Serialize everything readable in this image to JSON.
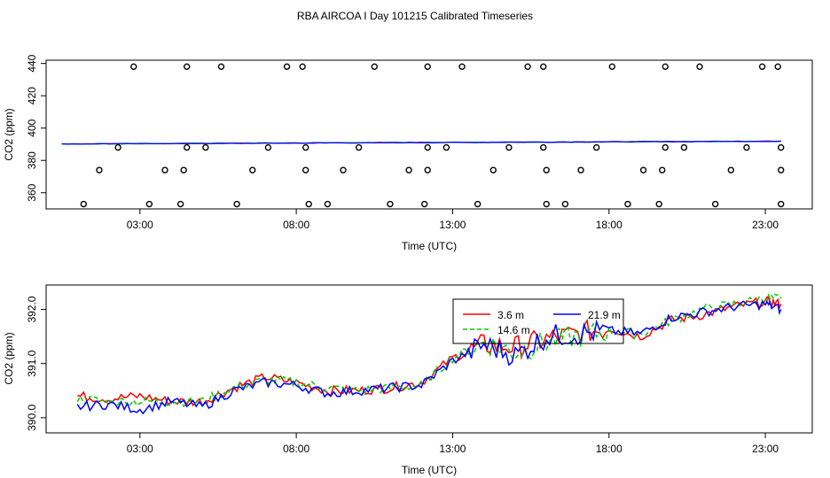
{
  "title": "RBA AIRCOA I  Day 101215  Calibrated Timeseries",
  "colors": {
    "line_3_6": "#ff0000",
    "line_14_6": "#00cc00",
    "line_21_9": "#0000ff",
    "points": "#000000"
  },
  "chart_data": [
    {
      "type": "scatter",
      "xlabel": "Time (UTC)",
      "ylabel": "CO2 (ppm)",
      "xlim": [
        0.0,
        24.5
      ],
      "ylim": [
        350,
        442
      ],
      "x_ticks": [
        3,
        8,
        13,
        18,
        23
      ],
      "x_tick_labels": [
        "03:00",
        "08:00",
        "13:00",
        "18:00",
        "23:00"
      ],
      "y_ticks": [
        360,
        380,
        400,
        420,
        440
      ],
      "y_tick_labels": [
        "360",
        "380",
        "400",
        "420",
        "440"
      ],
      "points": [
        {
          "x": 1.2,
          "y": 353
        },
        {
          "x": 1.7,
          "y": 374
        },
        {
          "x": 2.3,
          "y": 388
        },
        {
          "x": 2.8,
          "y": 438
        },
        {
          "x": 3.3,
          "y": 353
        },
        {
          "x": 3.8,
          "y": 374
        },
        {
          "x": 4.3,
          "y": 353
        },
        {
          "x": 4.4,
          "y": 374
        },
        {
          "x": 4.5,
          "y": 388
        },
        {
          "x": 4.5,
          "y": 438
        },
        {
          "x": 5.1,
          "y": 388
        },
        {
          "x": 5.6,
          "y": 438
        },
        {
          "x": 6.1,
          "y": 353
        },
        {
          "x": 6.6,
          "y": 374
        },
        {
          "x": 7.1,
          "y": 388
        },
        {
          "x": 7.7,
          "y": 438
        },
        {
          "x": 8.2,
          "y": 438
        },
        {
          "x": 8.3,
          "y": 388
        },
        {
          "x": 8.3,
          "y": 374
        },
        {
          "x": 8.4,
          "y": 353
        },
        {
          "x": 9.0,
          "y": 353
        },
        {
          "x": 9.5,
          "y": 374
        },
        {
          "x": 10.0,
          "y": 388
        },
        {
          "x": 10.5,
          "y": 438
        },
        {
          "x": 11.0,
          "y": 353
        },
        {
          "x": 11.6,
          "y": 374
        },
        {
          "x": 12.1,
          "y": 353
        },
        {
          "x": 12.2,
          "y": 374
        },
        {
          "x": 12.2,
          "y": 388
        },
        {
          "x": 12.2,
          "y": 438
        },
        {
          "x": 12.8,
          "y": 388
        },
        {
          "x": 13.3,
          "y": 438
        },
        {
          "x": 13.8,
          "y": 353
        },
        {
          "x": 14.3,
          "y": 374
        },
        {
          "x": 14.8,
          "y": 388
        },
        {
          "x": 15.4,
          "y": 438
        },
        {
          "x": 15.9,
          "y": 438
        },
        {
          "x": 15.9,
          "y": 388
        },
        {
          "x": 16.0,
          "y": 374
        },
        {
          "x": 16.0,
          "y": 353
        },
        {
          "x": 16.6,
          "y": 353
        },
        {
          "x": 17.1,
          "y": 374
        },
        {
          "x": 17.6,
          "y": 388
        },
        {
          "x": 18.1,
          "y": 438
        },
        {
          "x": 18.6,
          "y": 353
        },
        {
          "x": 19.1,
          "y": 374
        },
        {
          "x": 19.6,
          "y": 353
        },
        {
          "x": 19.7,
          "y": 374
        },
        {
          "x": 19.8,
          "y": 388
        },
        {
          "x": 19.8,
          "y": 438
        },
        {
          "x": 20.4,
          "y": 388
        },
        {
          "x": 20.9,
          "y": 438
        },
        {
          "x": 21.4,
          "y": 353
        },
        {
          "x": 21.9,
          "y": 374
        },
        {
          "x": 22.4,
          "y": 388
        },
        {
          "x": 22.9,
          "y": 438
        },
        {
          "x": 23.4,
          "y": 438
        },
        {
          "x": 23.5,
          "y": 388
        },
        {
          "x": 23.5,
          "y": 374
        },
        {
          "x": 23.5,
          "y": 353
        }
      ],
      "series": [
        {
          "values": [
            [
              0.5,
              390.2
            ],
            [
              23.5,
              391.9
            ]
          ]
        }
      ]
    },
    {
      "type": "line",
      "xlabel": "Time (UTC)",
      "ylabel": "CO2 (ppm)",
      "xlim": [
        0.0,
        24.5
      ],
      "ylim": [
        389.72,
        392.45
      ],
      "x_ticks": [
        3,
        8,
        13,
        18,
        23
      ],
      "x_tick_labels": [
        "03:00",
        "08:00",
        "13:00",
        "18:00",
        "23:00"
      ],
      "y_ticks": [
        390.0,
        391.0,
        392.0
      ],
      "y_tick_labels": [
        "390.0",
        "391.0",
        "392.0"
      ],
      "legend": {
        "position": "top-center",
        "entries": [
          "3.6 m",
          "14.6 m",
          "21.9 m"
        ]
      },
      "series": [
        {
          "name": "3.6 m",
          "x": [
            1.0,
            2.0,
            3.0,
            4.0,
            5.0,
            6.0,
            7.0,
            8.0,
            9.0,
            10.0,
            11.0,
            12.0,
            13.0,
            14.0,
            15.0,
            16.0,
            17.0,
            18.0,
            19.0,
            20.0,
            21.0,
            22.0,
            23.0,
            23.5
          ],
          "y": [
            390.4,
            390.35,
            390.4,
            390.3,
            390.3,
            390.55,
            390.75,
            390.65,
            390.5,
            390.5,
            390.55,
            390.65,
            391.1,
            391.35,
            391.3,
            391.45,
            391.55,
            391.65,
            391.5,
            391.8,
            391.9,
            392.05,
            392.15,
            392.1
          ]
        },
        {
          "name": "14.6 m",
          "x": [
            1.0,
            2.0,
            3.0,
            4.0,
            5.0,
            6.0,
            7.0,
            8.0,
            9.0,
            10.0,
            11.0,
            12.0,
            13.0,
            14.0,
            15.0,
            16.0,
            17.0,
            18.0,
            19.0,
            20.0,
            21.0,
            22.0,
            23.0,
            23.5
          ],
          "y": [
            390.35,
            390.3,
            390.3,
            390.3,
            390.3,
            390.55,
            390.7,
            390.65,
            390.55,
            390.5,
            390.55,
            390.6,
            391.1,
            391.4,
            391.2,
            391.4,
            391.5,
            391.6,
            391.55,
            391.8,
            392.0,
            392.1,
            392.2,
            392.2
          ]
        },
        {
          "name": "21.9 m",
          "x": [
            1.0,
            2.0,
            3.0,
            4.0,
            5.0,
            6.0,
            7.0,
            8.0,
            9.0,
            10.0,
            11.0,
            12.0,
            13.0,
            14.0,
            15.0,
            16.0,
            17.0,
            18.0,
            19.0,
            20.0,
            21.0,
            22.0,
            23.0,
            23.5
          ],
          "y": [
            390.2,
            390.25,
            390.15,
            390.3,
            390.2,
            390.5,
            390.65,
            390.6,
            390.45,
            390.5,
            390.55,
            390.6,
            391.05,
            391.35,
            391.15,
            391.5,
            391.55,
            391.6,
            391.55,
            391.85,
            391.95,
            392.05,
            392.1,
            392.0
          ]
        }
      ]
    }
  ]
}
